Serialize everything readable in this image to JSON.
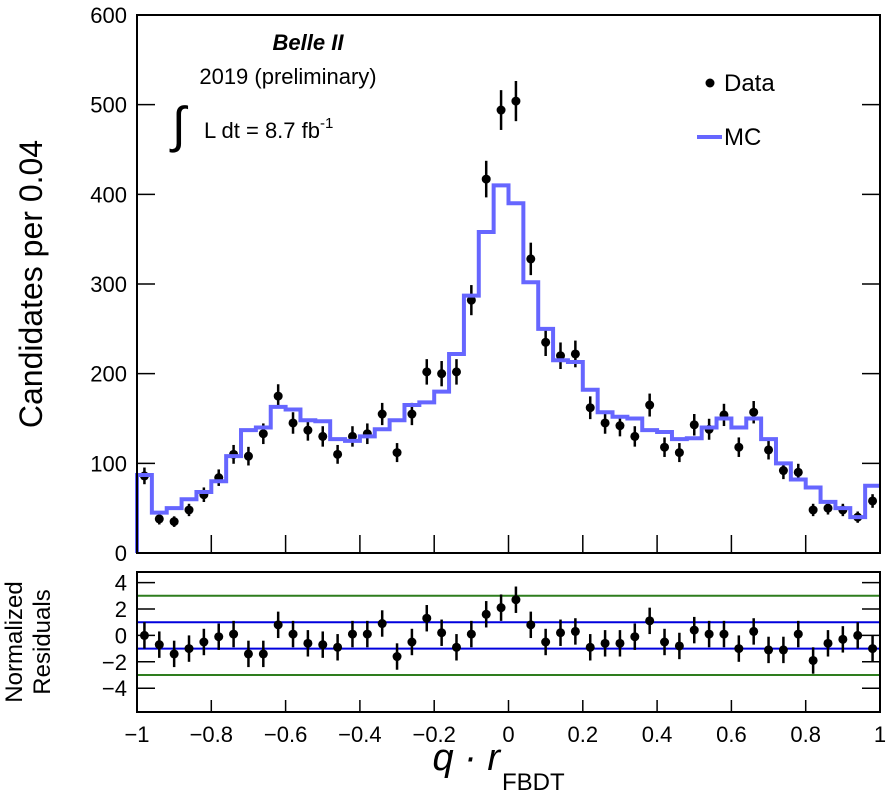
{
  "chart_data": [
    {
      "type": "histogram-fit",
      "ylabel": "Candidates per 0.04",
      "experiment": "Belle II",
      "subtitle": "2019 (preliminary)",
      "luminosity": {
        "symbol": "∫",
        "text": "L dt = 8.7 fb",
        "exponent": "-1"
      },
      "legend": "top-right",
      "xlim": [
        -1,
        1
      ],
      "ylim": [
        0,
        600
      ],
      "yticks": [
        0,
        100,
        200,
        300,
        400,
        500,
        600
      ],
      "x": [
        -0.98,
        -0.94,
        -0.9,
        -0.86,
        -0.82,
        -0.78,
        -0.74,
        -0.7,
        -0.66,
        -0.62,
        -0.58,
        -0.54,
        -0.5,
        -0.46,
        -0.42,
        -0.38,
        -0.34,
        -0.3,
        -0.26,
        -0.22,
        -0.18,
        -0.14,
        -0.1,
        -0.06,
        -0.02,
        0.02,
        0.06,
        0.1,
        0.14,
        0.18,
        0.22,
        0.26,
        0.3,
        0.34,
        0.38,
        0.42,
        0.46,
        0.5,
        0.54,
        0.58,
        0.62,
        0.66,
        0.7,
        0.74,
        0.78,
        0.82,
        0.86,
        0.9,
        0.94,
        0.98
      ],
      "series": [
        {
          "name": "Data",
          "color": "#000000",
          "style": "points",
          "values": [
            86,
            38,
            35,
            48,
            65,
            84,
            110,
            108,
            133,
            175,
            145,
            137,
            130,
            110,
            130,
            133,
            155,
            112,
            155,
            202,
            200,
            202,
            282,
            417,
            494,
            504,
            328,
            235,
            220,
            222,
            162,
            145,
            142,
            130,
            165,
            118,
            112,
            143,
            138,
            154,
            118,
            157,
            115,
            92,
            90,
            48,
            50,
            48,
            40,
            58
          ],
          "errors": [
            9.3,
            6.2,
            5.9,
            6.9,
            8.1,
            9.2,
            10.5,
            10.4,
            11.5,
            13.2,
            12,
            11.7,
            11.4,
            10.5,
            11.4,
            11.5,
            12.4,
            10.6,
            12.4,
            14.2,
            14.1,
            14.2,
            16.8,
            20.4,
            22.2,
            22.4,
            18.1,
            15.3,
            14.8,
            14.9,
            12.7,
            12,
            11.9,
            11.4,
            12.8,
            10.9,
            10.6,
            12,
            11.7,
            12.4,
            10.9,
            12.5,
            10.7,
            9.6,
            9.5,
            6.9,
            7.1,
            6.9,
            6.3,
            7.6
          ]
        },
        {
          "name": "MC",
          "color": "#6666ff",
          "style": "step",
          "values": [
            87,
            45,
            50,
            60,
            68,
            80,
            108,
            137,
            140,
            163,
            160,
            148,
            147,
            127,
            125,
            130,
            138,
            148,
            165,
            168,
            180,
            222,
            287,
            358,
            410,
            390,
            302,
            250,
            215,
            213,
            182,
            157,
            152,
            150,
            137,
            135,
            127,
            128,
            140,
            150,
            140,
            150,
            127,
            100,
            82,
            73,
            57,
            50,
            40,
            75
          ]
        }
      ]
    },
    {
      "type": "residuals",
      "ylabel": [
        "Normalized",
        "Residuals"
      ],
      "xlabel": {
        "text": "q · r",
        "subscript": "FBDT"
      },
      "xlim": [
        -1,
        1
      ],
      "ylim": [
        -5.8,
        4.8
      ],
      "xticks": [
        {
          "value": -1,
          "label": "−1"
        },
        {
          "value": -0.8,
          "label": "−0.8"
        },
        {
          "value": -0.6,
          "label": "−0.6"
        },
        {
          "value": -0.4,
          "label": "−0.4"
        },
        {
          "value": -0.2,
          "label": "−0.2"
        },
        0,
        0.2,
        0.4,
        0.6,
        0.8,
        1
      ],
      "yticks": [
        {
          "value": -4,
          "label": "−4"
        },
        {
          "value": -2,
          "label": "−2"
        },
        0,
        2,
        4
      ],
      "hlines": [
        {
          "value": 1,
          "color": "#0000dd"
        },
        {
          "value": -1,
          "color": "#0000dd"
        },
        {
          "value": 3,
          "color": "#2e7d1e"
        },
        {
          "value": -3,
          "color": "#2e7d1e"
        }
      ],
      "x": [
        -0.98,
        -0.94,
        -0.9,
        -0.86,
        -0.82,
        -0.78,
        -0.74,
        -0.7,
        -0.66,
        -0.62,
        -0.58,
        -0.54,
        -0.5,
        -0.46,
        -0.42,
        -0.38,
        -0.34,
        -0.3,
        -0.26,
        -0.22,
        -0.18,
        -0.14,
        -0.1,
        -0.06,
        -0.02,
        0.02,
        0.06,
        0.1,
        0.14,
        0.18,
        0.22,
        0.26,
        0.3,
        0.34,
        0.38,
        0.42,
        0.46,
        0.5,
        0.54,
        0.58,
        0.62,
        0.66,
        0.7,
        0.74,
        0.78,
        0.82,
        0.86,
        0.9,
        0.94,
        0.98
      ],
      "color": "#000000",
      "values": [
        0,
        -0.7,
        -1.4,
        -1.0,
        -0.5,
        -0.1,
        0.1,
        -1.4,
        -1.4,
        0.8,
        0.1,
        -0.6,
        -0.7,
        -0.9,
        0.1,
        0.1,
        0.9,
        -1.6,
        -0.5,
        1.3,
        0.2,
        -0.9,
        0.1,
        1.6,
        2.1,
        2.7,
        0.8,
        -0.5,
        0.2,
        0.3,
        -0.9,
        -0.6,
        -0.6,
        -0.1,
        1.1,
        -0.5,
        -0.8,
        0.4,
        0.1,
        0.1,
        -1.0,
        0.3,
        -1.1,
        -1.1,
        0.1,
        -1.9,
        -0.6,
        -0.3,
        0.0,
        -1.0
      ],
      "errors": [
        1,
        1,
        1,
        1,
        1,
        1,
        1,
        1,
        1,
        1,
        1,
        1,
        1,
        1,
        1,
        1,
        1,
        1,
        1,
        1,
        1,
        1,
        1,
        1,
        1,
        1,
        1,
        1,
        1,
        1,
        1,
        1,
        1,
        1,
        1,
        1,
        1,
        1,
        1,
        1,
        1,
        1,
        1,
        1,
        1,
        1,
        1,
        1,
        1,
        1
      ]
    }
  ]
}
